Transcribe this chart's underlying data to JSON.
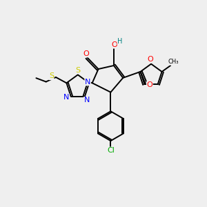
{
  "background_color": "#efefef",
  "bond_color": "#000000",
  "atom_colors": {
    "O": "#ff0000",
    "N": "#0000ff",
    "S": "#cccc00",
    "Cl": "#00aa00",
    "H": "#008080",
    "C": "#000000"
  },
  "font_size": 8,
  "lw": 1.4,
  "figsize": [
    3.0,
    3.0
  ],
  "dpi": 100
}
